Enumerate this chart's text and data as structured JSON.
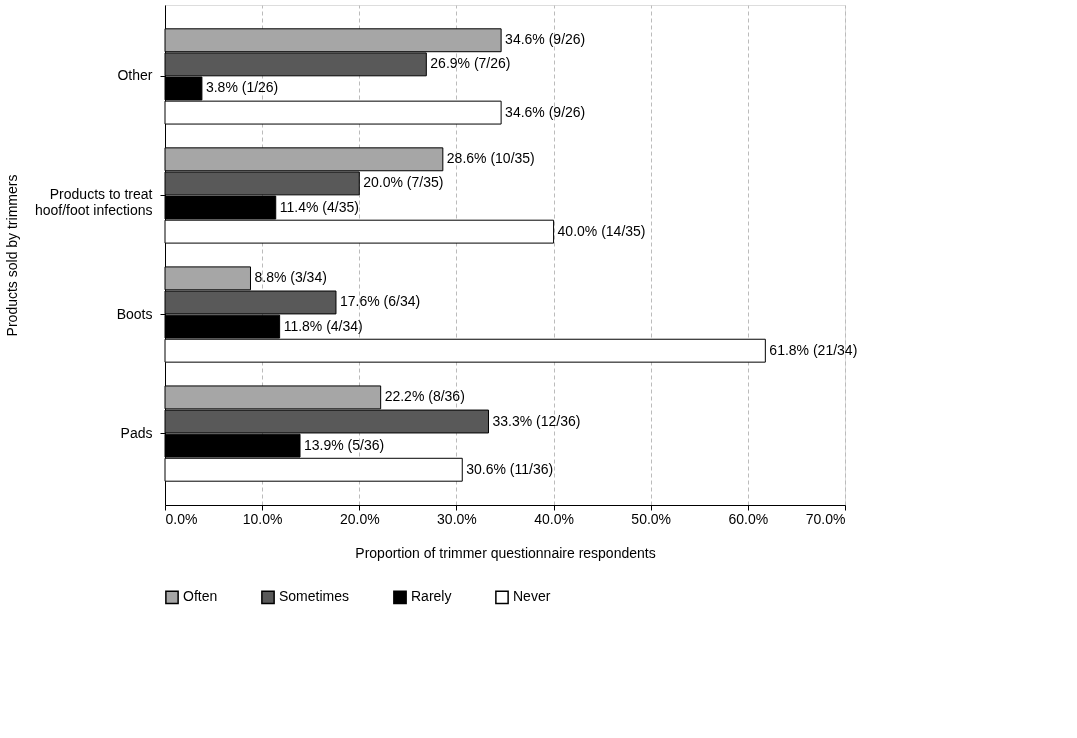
{
  "chart_data": {
    "type": "bar",
    "orientation": "horizontal",
    "xlabel": "Proportion of trimmer questionnaire respondents",
    "ylabel": "Products sold by trimmers",
    "categories": [
      "Other",
      "Products to treat hoof/foot infections",
      "Boots",
      "Pads"
    ],
    "series": [
      {
        "name": "Often",
        "color": "#a6a6a6",
        "values": [
          34.6,
          28.6,
          8.8,
          22.2
        ],
        "value_labels": [
          "34.6% (9/26)",
          "28.6% (10/35)",
          "8.8% (3/34)",
          "22.2% (8/36)"
        ]
      },
      {
        "name": "Sometimes",
        "color": "#595959",
        "values": [
          26.9,
          20.0,
          17.6,
          33.3
        ],
        "value_labels": [
          "26.9% (7/26)",
          "20.0% (7/35)",
          "17.6% (6/34)",
          "33.3% (12/36)"
        ]
      },
      {
        "name": "Rarely",
        "color": "#000000",
        "values": [
          3.8,
          11.4,
          11.8,
          13.9
        ],
        "value_labels": [
          "3.8% (1/26)",
          "11.4% (4/35)",
          "11.8% (4/34)",
          "13.9% (5/36)"
        ]
      },
      {
        "name": "Never",
        "color": "#ffffff",
        "values": [
          34.6,
          40.0,
          61.8,
          30.6
        ],
        "value_labels": [
          "34.6% (9/26)",
          "40.0% (14/35)",
          "61.8% (21/34)",
          "30.6% (11/36)"
        ]
      }
    ],
    "xlim": [
      0,
      70
    ],
    "xticks": [
      {
        "value": 0,
        "label": "0.0%"
      },
      {
        "value": 10,
        "label": "10.0%"
      },
      {
        "value": 20,
        "label": "20.0%"
      },
      {
        "value": 30,
        "label": "30.0%"
      },
      {
        "value": 40,
        "label": "40.0%"
      },
      {
        "value": 50,
        "label": "50.0%"
      },
      {
        "value": 60,
        "label": "60.0%"
      },
      {
        "value": 70,
        "label": "70.0%"
      }
    ],
    "grid": "x",
    "legend": "bottom"
  }
}
